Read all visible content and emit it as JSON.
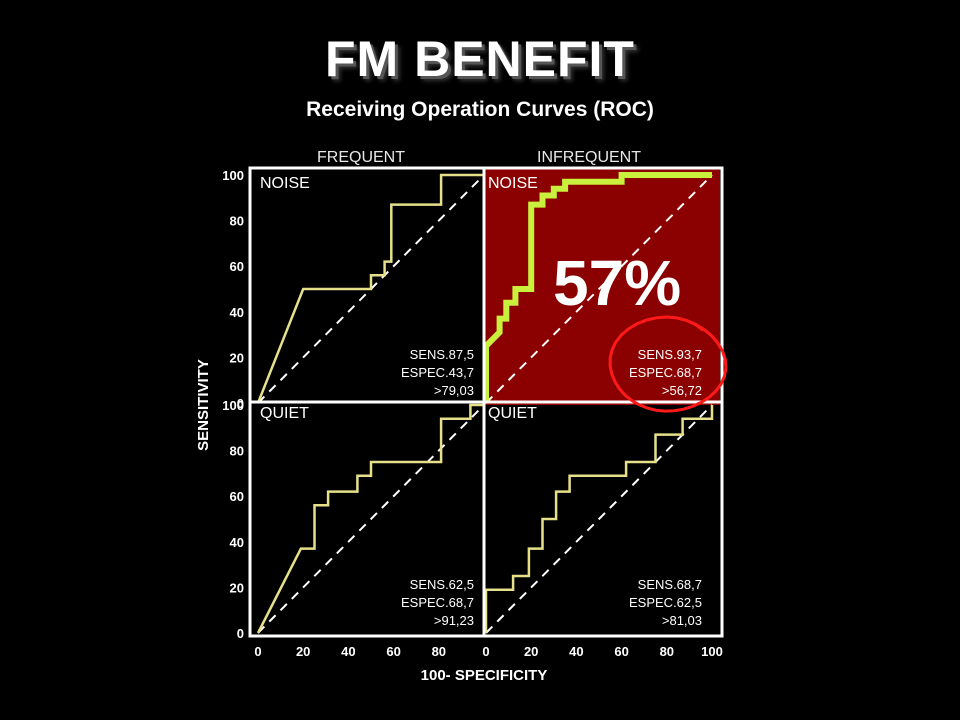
{
  "title": "FM BENEFIT",
  "subtitle": "Receiving Operation Curves (ROC)",
  "colors": {
    "background": "#000000",
    "highlight_panel": "#8b0000",
    "curve": "#e6e08a",
    "highlight_curve": "#c8f03c",
    "annotation": "#ff1a1a"
  },
  "chart_data": {
    "type": "line",
    "xlabel": "100- SPECIFICITY",
    "ylabel": "SENSITIVITY",
    "xlim": [
      0,
      100
    ],
    "ylim": [
      0,
      100
    ],
    "x_ticks": [
      "0",
      "20",
      "40",
      "60",
      "80",
      "100"
    ],
    "y_ticks": [
      "0",
      "20",
      "40",
      "60",
      "80",
      "100"
    ],
    "columns": [
      "FREQUENT",
      "INFREQUENT"
    ],
    "rows": [
      "NOISE",
      "QUIET"
    ],
    "highlight_value": "57%",
    "panels": [
      {
        "row": "NOISE",
        "column": "FREQUENT",
        "highlighted": false,
        "stats": [
          "SENS.87,5",
          "ESPEC.43,7",
          ">79,03"
        ],
        "points": [
          [
            0,
            0
          ],
          [
            20,
            50
          ],
          [
            50,
            50
          ],
          [
            50,
            56
          ],
          [
            56,
            56
          ],
          [
            56,
            62
          ],
          [
            59,
            62
          ],
          [
            59,
            87
          ],
          [
            81,
            87
          ],
          [
            81,
            100
          ],
          [
            100,
            100
          ]
        ]
      },
      {
        "row": "NOISE",
        "column": "INFREQUENT",
        "highlighted": true,
        "stats": [
          "SENS.93,7",
          "ESPEC.68,7",
          ">56,72"
        ],
        "points": [
          [
            0,
            0
          ],
          [
            0,
            25
          ],
          [
            6,
            31
          ],
          [
            6,
            37
          ],
          [
            9,
            37
          ],
          [
            9,
            44
          ],
          [
            13,
            44
          ],
          [
            13,
            50
          ],
          [
            20,
            50
          ],
          [
            20,
            87
          ],
          [
            25,
            87
          ],
          [
            25,
            91
          ],
          [
            30,
            91
          ],
          [
            30,
            94
          ],
          [
            35,
            94
          ],
          [
            35,
            97
          ],
          [
            60,
            97
          ],
          [
            60,
            100
          ],
          [
            100,
            100
          ]
        ]
      },
      {
        "row": "QUIET",
        "column": "FREQUENT",
        "highlighted": false,
        "stats": [
          "SENS.62,5",
          "ESPEC.68,7",
          ">91,23"
        ],
        "points": [
          [
            0,
            0
          ],
          [
            19,
            37
          ],
          [
            25,
            37
          ],
          [
            25,
            56
          ],
          [
            31,
            56
          ],
          [
            31,
            62
          ],
          [
            44,
            62
          ],
          [
            44,
            69
          ],
          [
            50,
            69
          ],
          [
            50,
            75
          ],
          [
            81,
            75
          ],
          [
            81,
            94
          ],
          [
            94,
            94
          ],
          [
            94,
            100
          ],
          [
            100,
            100
          ]
        ]
      },
      {
        "row": "QUIET",
        "column": "INFREQUENT",
        "highlighted": false,
        "stats": [
          "SENS.68,7",
          "ESPEC.62,5",
          ">81,03"
        ],
        "points": [
          [
            0,
            0
          ],
          [
            0,
            19
          ],
          [
            12,
            19
          ],
          [
            12,
            25
          ],
          [
            19,
            25
          ],
          [
            19,
            37
          ],
          [
            25,
            37
          ],
          [
            25,
            50
          ],
          [
            31,
            50
          ],
          [
            31,
            62
          ],
          [
            37,
            62
          ],
          [
            37,
            69
          ],
          [
            62,
            69
          ],
          [
            62,
            75
          ],
          [
            75,
            75
          ],
          [
            75,
            87
          ],
          [
            87,
            87
          ],
          [
            87,
            94
          ],
          [
            100,
            94
          ],
          [
            100,
            100
          ]
        ]
      }
    ]
  }
}
